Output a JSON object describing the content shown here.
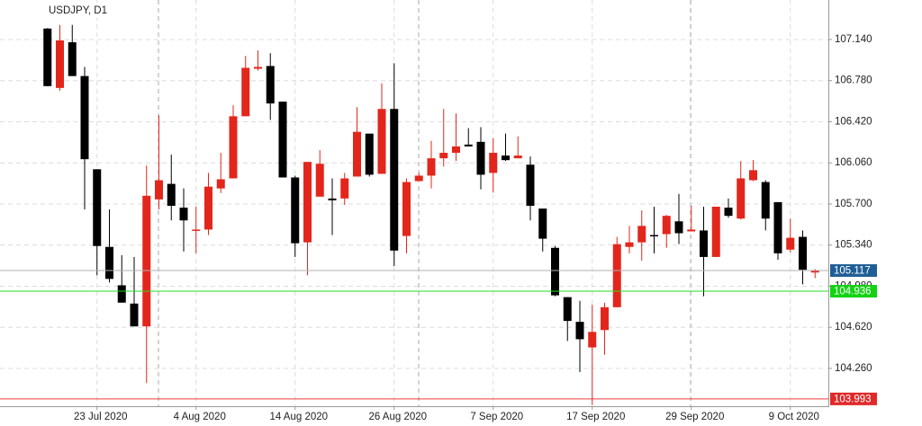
{
  "chart_data": {
    "type": "candlestick",
    "title": "USDJPY, D1",
    "categories": [
      null,
      null,
      null,
      null,
      "23 Jul 2020",
      null,
      null,
      null,
      null,
      null,
      null,
      null,
      "4 Aug 2020",
      null,
      null,
      null,
      null,
      null,
      null,
      null,
      "14 Aug 2020",
      null,
      null,
      null,
      null,
      null,
      null,
      null,
      "26 Aug 2020",
      null,
      null,
      null,
      null,
      null,
      null,
      null,
      "7 Sep 2020",
      null,
      null,
      null,
      null,
      null,
      null,
      null,
      "17 Sep 2020",
      null,
      null,
      null,
      null,
      null,
      null,
      null,
      "29 Sep 2020",
      null,
      null,
      null,
      null,
      null,
      null,
      null,
      "9 Oct 2020",
      null,
      null
    ],
    "open": [
      107.236,
      106.716,
      107.116,
      106.82,
      106.004,
      105.324,
      104.988,
      104.828,
      104.628,
      105.74,
      105.876,
      105.668,
      105.476,
      105.476,
      105.836,
      105.924,
      106.468,
      106.884,
      106.908,
      106.596,
      105.932,
      105.364,
      105.764,
      105.748,
      105.748,
      105.94,
      106.316,
      105.964,
      106.532,
      105.42,
      105.9,
      105.948,
      106.1,
      106.148,
      106.22,
      106.244,
      105.972,
      106.124,
      106.1,
      106.044,
      105.66,
      105.316,
      104.884,
      104.668,
      104.444,
      104.596,
      104.796,
      105.324,
      105.364,
      105.428,
      105.436,
      105.548,
      105.46,
      105.468,
      105.236,
      105.668,
      105.572,
      105.908,
      105.892,
      105.716,
      105.3,
      105.412,
      105.1
    ],
    "high": [
      107.24,
      107.268,
      107.268,
      106.9,
      106.004,
      105.652,
      105.252,
      105.236,
      106.036,
      106.476,
      106.132,
      105.836,
      105.676,
      105.972,
      106.148,
      106.564,
      106.996,
      107.044,
      107.02,
      106.596,
      105.948,
      106.068,
      106.172,
      105.924,
      105.972,
      106.548,
      106.316,
      106.756,
      106.932,
      105.924,
      105.972,
      106.252,
      106.532,
      106.492,
      106.364,
      106.372,
      106.276,
      106.316,
      106.292,
      106.116,
      105.66,
      105.332,
      104.884,
      104.852,
      104.82,
      104.836,
      105.412,
      105.508,
      105.644,
      105.676,
      105.604,
      105.788,
      105.684,
      105.676,
      105.676,
      105.748,
      106.076,
      106.084,
      105.908,
      105.716,
      105.572,
      105.468,
      105.13
    ],
    "low": [
      106.73,
      106.692,
      106.82,
      105.652,
      105.076,
      105.012,
      104.836,
      104.628,
      104.132,
      105.652,
      105.556,
      105.284,
      105.268,
      105.428,
      105.796,
      105.924,
      106.468,
      106.868,
      106.436,
      105.932,
      105.236,
      105.076,
      105.764,
      105.428,
      105.692,
      105.94,
      105.94,
      105.964,
      105.156,
      105.268,
      105.9,
      105.836,
      106.028,
      106.076,
      106.204,
      105.828,
      105.8,
      106.076,
      106.1,
      105.556,
      105.284,
      104.892,
      104.5,
      104.228,
      103.94,
      104.38,
      104.796,
      105.268,
      105.204,
      105.268,
      105.316,
      105.348,
      105.46,
      104.892,
      105.236,
      105.58,
      105.564,
      105.9,
      105.468,
      105.212,
      105.276,
      104.996,
      105.05
    ],
    "close": [
      106.732,
      107.132,
      106.82,
      106.092,
      105.332,
      105.044,
      104.836,
      104.628,
      105.772,
      105.908,
      105.684,
      105.556,
      105.476,
      105.852,
      105.916,
      106.468,
      106.892,
      106.9,
      106.58,
      105.932,
      105.356,
      106.068,
      106.052,
      105.732,
      105.924,
      106.332,
      105.956,
      106.532,
      105.292,
      105.892,
      105.948,
      106.1,
      106.148,
      106.204,
      106.204,
      105.956,
      106.148,
      106.084,
      106.124,
      105.684,
      105.396,
      104.9,
      104.676,
      104.516,
      104.58,
      104.796,
      105.348,
      105.364,
      105.508,
      105.42,
      105.596,
      105.444,
      105.476,
      105.236,
      105.676,
      105.596,
      105.924,
      105.996,
      105.572,
      105.268,
      105.404,
      105.124,
      105.117
    ],
    "up_color": "#e3261c",
    "down_color": "#000000",
    "ylim": [
      103.929,
      107.486
    ],
    "yticks": [
      {
        "value": 107.14,
        "label": "107.140"
      },
      {
        "value": 106.78,
        "label": "106.780"
      },
      {
        "value": 106.42,
        "label": "106.420"
      },
      {
        "value": 106.06,
        "label": "106.060"
      },
      {
        "value": 105.7,
        "label": "105.700"
      },
      {
        "value": 105.34,
        "label": "105.340"
      },
      {
        "value": 104.98,
        "label": "104.980"
      },
      {
        "value": 104.62,
        "label": "104.620"
      },
      {
        "value": 104.26,
        "label": "104.260"
      }
    ],
    "grid": true,
    "levels": [
      {
        "value": 105.117,
        "line_color": "#b0b0b0",
        "label_color": "#1f5f96"
      },
      {
        "value": 104.936,
        "line_color": "#22dd22",
        "label_color": "#12d312"
      },
      {
        "value": 103.993,
        "line_color": "#ee3a3a",
        "label_color": "#e02a2a"
      }
    ]
  }
}
